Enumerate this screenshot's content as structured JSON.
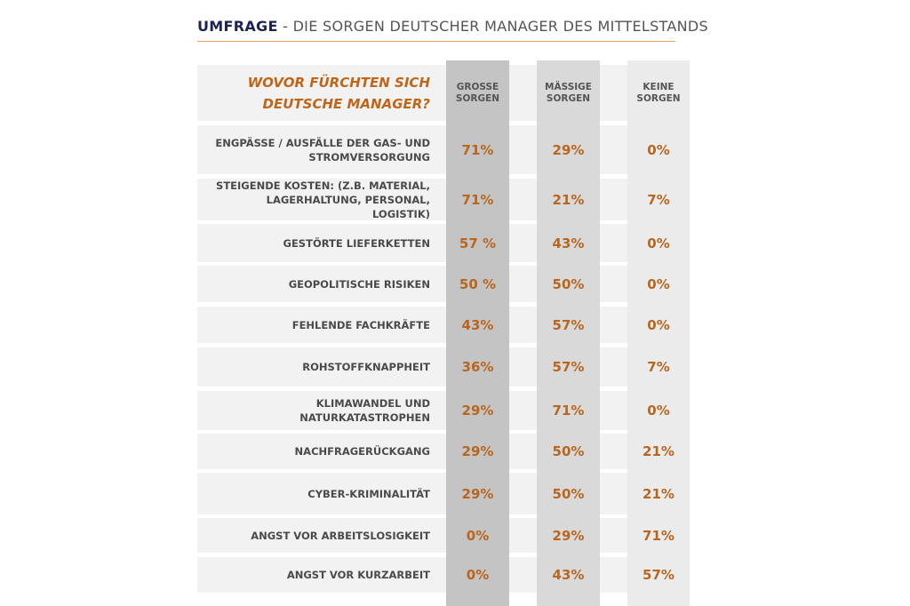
{
  "title": {
    "bold": "UMFRAGE",
    "rest": " - DIE SORGEN DEUTSCHER MANAGER DES MITTELSTANDS"
  },
  "colors": {
    "title_bold": "#1f2255",
    "accent": "#c0661a",
    "rule": "#e8a36b",
    "col1": "#c4c4c4",
    "col2": "#d9d9d9",
    "col3": "#ebebeb",
    "row": "#f2f2f2"
  },
  "chart_data": {
    "type": "table",
    "question": "WOVOR FÜRCHTEN SICH DEUTSCHE MANAGER?",
    "columns": [
      "GROSSE SORGEN",
      "MÄSSIGE SORGEN",
      "KEINE SORGEN"
    ],
    "rows": [
      {
        "label": "ENGPÄSSE / AUSFÄLLE DER GAS- UND STROMVERSORGUNG",
        "values": [
          "71%",
          "29%",
          "0%"
        ]
      },
      {
        "label": "STEIGENDE KOSTEN: (Z.B. MATERIAL, LAGERHALTUNG, PERSONAL, LOGISTIK)",
        "values": [
          "71%",
          "21%",
          "7%"
        ]
      },
      {
        "label": "GESTÖRTE LIEFERKETTEN",
        "values": [
          "57 %",
          "43%",
          "0%"
        ]
      },
      {
        "label": "GEOPOLITISCHE RISIKEN",
        "values": [
          "50 %",
          "50%",
          "0%"
        ]
      },
      {
        "label": "FEHLENDE FACHKRÄFTE",
        "values": [
          "43%",
          "57%",
          "0%"
        ]
      },
      {
        "label": "ROHSTOFFKNAPPHEIT",
        "values": [
          "36%",
          "57%",
          "7%"
        ]
      },
      {
        "label": "KLIMAWANDEL UND NATURKATASTROPHEN",
        "values": [
          "29%",
          "71%",
          "0%"
        ]
      },
      {
        "label": "NACHFRAGERÜCKGANG",
        "values": [
          "29%",
          "50%",
          "21%"
        ]
      },
      {
        "label": "CYBER-KRIMINALITÄT",
        "values": [
          "29%",
          "50%",
          "21%"
        ]
      },
      {
        "label": "ANGST VOR ARBEITSLOSIGKEIT",
        "values": [
          "0%",
          "29%",
          "71%"
        ]
      },
      {
        "label": "ANGST VOR KURZARBEIT",
        "values": [
          "0%",
          "43%",
          "57%"
        ]
      }
    ]
  }
}
